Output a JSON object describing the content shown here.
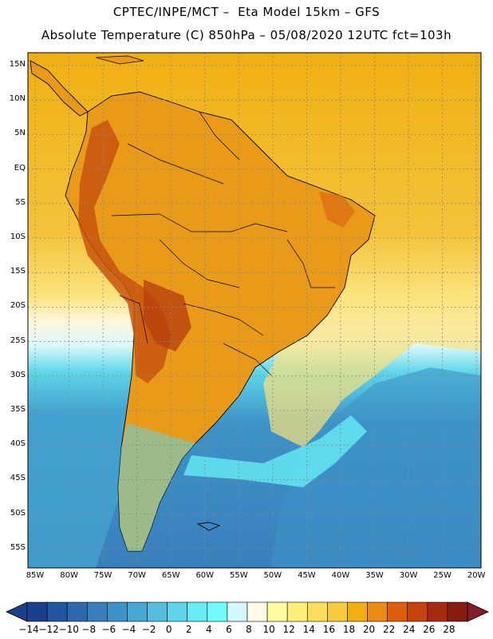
{
  "title_line1": "CPTEC/INPE/MCT –  Eta Model 15km – GFS",
  "title_line2": "Absolute Temperature (C) 850hPa – 05/08/2020 12UTC fct=103h",
  "lat_labels": [
    "15N",
    "10N",
    "5N",
    "EQ",
    "5S",
    "10S",
    "15S",
    "20S",
    "25S",
    "30S",
    "35S",
    "40S",
    "45S",
    "50S",
    "55S"
  ],
  "lon_labels": [
    "85W",
    "80W",
    "75W",
    "70W",
    "65W",
    "60W",
    "55W",
    "50W",
    "45W",
    "40W",
    "35W",
    "30W",
    "25W",
    "20W"
  ],
  "colorbar": {
    "labels": [
      "-14",
      "-12",
      "-10",
      "-8",
      "-6",
      "-4",
      "-2",
      "0",
      "2",
      "4",
      "6",
      "8",
      "10",
      "12",
      "14",
      "16",
      "18",
      "20",
      "22",
      "24",
      "26",
      "28"
    ],
    "colors": [
      "#1c3f8a",
      "#2356a0",
      "#2c6aad",
      "#3a7fbc",
      "#3d93c8",
      "#45a7d2",
      "#53bede",
      "#5fd6e8",
      "#66ecf4",
      "#70fcfc",
      "#d2f8fc",
      "#fffbe8",
      "#fefca0",
      "#fdef78",
      "#fbdf5c",
      "#f6cb3c",
      "#f0b012",
      "#e98a12",
      "#de5e0e",
      "#c8420e",
      "#a82a0e",
      "#861c12"
    ]
  },
  "colors": {
    "warm_ocean": "#f0b012",
    "cool_ocean": "#3d93c8",
    "land_hot": "#c8420e"
  }
}
